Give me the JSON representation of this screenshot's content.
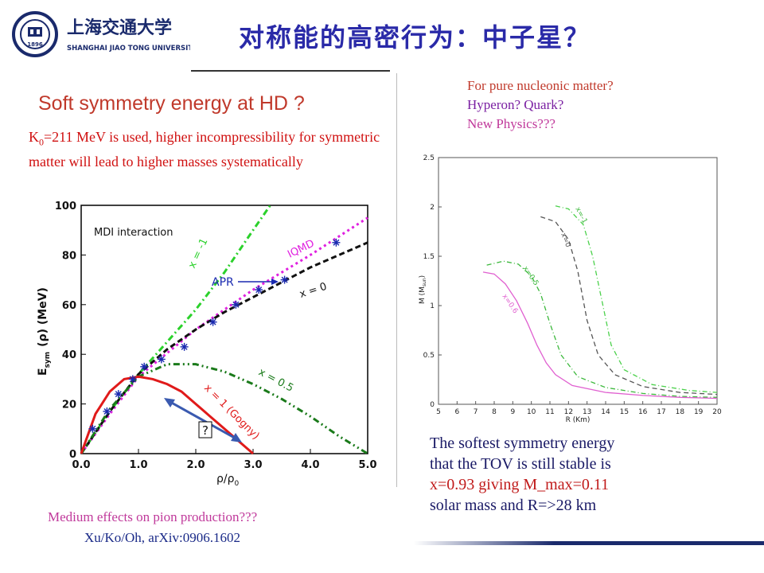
{
  "header": {
    "title": "对称能的高密行为：中子星？",
    "logo": {
      "icon": "university-seal-icon",
      "chinese_name": "上海交通大学",
      "english_name": "SHANGHAI JIAO TONG UNIVERSITY",
      "seal_year": "1896"
    }
  },
  "subtitle": "Soft symmetry energy at HD ?",
  "note_k0": {
    "prefix": "K",
    "sub": "0",
    "rest": "=211 MeV is used, higher incompressibility for symmetric matter will lead to higher masses systematically"
  },
  "right_questions": {
    "q1": "For pure nucleonic matter?",
    "q2": "Hyperon? Quark?",
    "q3": "New Physics???"
  },
  "conclusion": {
    "line1": "The softest symmetry energy",
    "line2": "that the TOV is still stable is",
    "hl": "x=0.93 giving M_max=0.11",
    "line4": "solar mass and R=>28 km"
  },
  "footer": {
    "medium": "Medium effects on pion production???",
    "citation": "Xu/Ko/Oh, arXiv:0906.1602"
  },
  "chart_data": [
    {
      "type": "line",
      "inner_title": "MDI interaction",
      "xlabel": "ρ/ρ",
      "xlabel_sub": "0",
      "ylabel_prefix": "E",
      "ylabel_sub": "sym",
      "ylabel_suffix": "(ρ) (MeV)",
      "xlim": [
        0,
        5
      ],
      "ylim": [
        0,
        100
      ],
      "xticks": [
        "0.0",
        "1.0",
        "2.0",
        "3.0",
        "4.0",
        "5.0"
      ],
      "yticks": [
        "0",
        "20",
        "40",
        "60",
        "80",
        "100"
      ],
      "series": [
        {
          "name": "x = -1",
          "color": "#2bd12b",
          "x": [
            0,
            0.5,
            1.0,
            1.5,
            2.0,
            2.5,
            3.0,
            3.3
          ],
          "y": [
            0,
            17,
            32,
            45,
            58,
            73,
            90,
            100
          ]
        },
        {
          "name": "IQMD",
          "color": "#e020e0",
          "x": [
            0,
            0.5,
            1.0,
            2.0,
            3.0,
            4.0,
            5.0
          ],
          "y": [
            0,
            16,
            31,
            50,
            66,
            80,
            95
          ]
        },
        {
          "name": "x = 0",
          "color": "#111111",
          "x": [
            0,
            0.5,
            1.0,
            1.5,
            2.0,
            2.5,
            3.0,
            3.5,
            4.0,
            4.5,
            5.0
          ],
          "y": [
            0,
            17,
            32,
            42,
            50,
            57,
            63,
            69,
            75,
            80,
            85
          ]
        },
        {
          "name": "x = 0.5",
          "color": "#1a7a1a",
          "x": [
            0,
            0.5,
            1.0,
            1.5,
            2.0,
            2.5,
            3.0,
            3.5,
            4.0,
            4.5,
            5.0
          ],
          "y": [
            0,
            18,
            31,
            36,
            36,
            33,
            28,
            22,
            15,
            7,
            0
          ]
        },
        {
          "name": "x = 1 (Gogny)",
          "color": "#e01a1a",
          "x": [
            0,
            0.25,
            0.5,
            0.75,
            1.0,
            1.25,
            1.5,
            1.75,
            2.0,
            2.25,
            2.5,
            2.75,
            3.0
          ],
          "y": [
            0,
            16,
            25,
            30,
            31,
            30,
            28,
            25,
            20,
            15,
            10,
            5,
            0
          ]
        }
      ],
      "apr": {
        "name": "APR",
        "x": [
          0.2,
          0.45,
          0.65,
          0.9,
          1.1,
          1.4,
          1.8,
          2.3,
          2.7,
          3.1,
          3.55,
          4.45
        ],
        "y": [
          10,
          17,
          24,
          30,
          35,
          38,
          43,
          53,
          60,
          66,
          70,
          85
        ]
      },
      "annotation_question": "?"
    },
    {
      "type": "line",
      "xlabel": "R (Km)",
      "ylabel": "M (M",
      "ylabel_sub": "sun",
      "ylabel_end": ")",
      "xlim": [
        5,
        20
      ],
      "ylim": [
        0,
        2.5
      ],
      "xticks": [
        "5",
        "6",
        "7",
        "8",
        "9",
        "10",
        "11",
        "12",
        "13",
        "14",
        "15",
        "16",
        "17",
        "18",
        "19",
        "20"
      ],
      "yticks": [
        "0",
        "0.5",
        "1",
        "1.5",
        "2",
        "2.5"
      ],
      "series": [
        {
          "name": "x=-1",
          "color": "#4bd14b",
          "x": [
            11.3,
            12.0,
            12.8,
            13.3,
            13.8,
            14.3,
            15.0,
            16.5,
            18.5,
            20.0
          ],
          "y": [
            2.01,
            1.98,
            1.82,
            1.5,
            1.05,
            0.6,
            0.35,
            0.2,
            0.14,
            0.12
          ]
        },
        {
          "name": "x=0",
          "color": "#555555",
          "x": [
            10.5,
            11.3,
            12.0,
            12.5,
            13.0,
            13.6,
            14.5,
            16.0,
            18.0,
            20.0
          ],
          "y": [
            1.9,
            1.85,
            1.67,
            1.35,
            0.85,
            0.5,
            0.3,
            0.18,
            0.12,
            0.1
          ]
        },
        {
          "name": "x=0.5",
          "color": "#3bb83b",
          "x": [
            7.6,
            8.5,
            9.3,
            10.0,
            10.5,
            11.0,
            11.6,
            12.5,
            14.0,
            16.0,
            18.0,
            20.0
          ],
          "y": [
            1.41,
            1.45,
            1.42,
            1.3,
            1.12,
            0.82,
            0.5,
            0.28,
            0.17,
            0.11,
            0.08,
            0.07
          ]
        },
        {
          "name": "x=0.6",
          "color": "#e060d0",
          "x": [
            7.4,
            8.0,
            8.6,
            9.2,
            9.8,
            10.3,
            10.8,
            11.3,
            12.2,
            14.0,
            16.0,
            18.0,
            20.0
          ],
          "y": [
            1.34,
            1.32,
            1.22,
            1.05,
            0.82,
            0.6,
            0.42,
            0.3,
            0.19,
            0.12,
            0.09,
            0.07,
            0.06
          ]
        }
      ]
    }
  ]
}
